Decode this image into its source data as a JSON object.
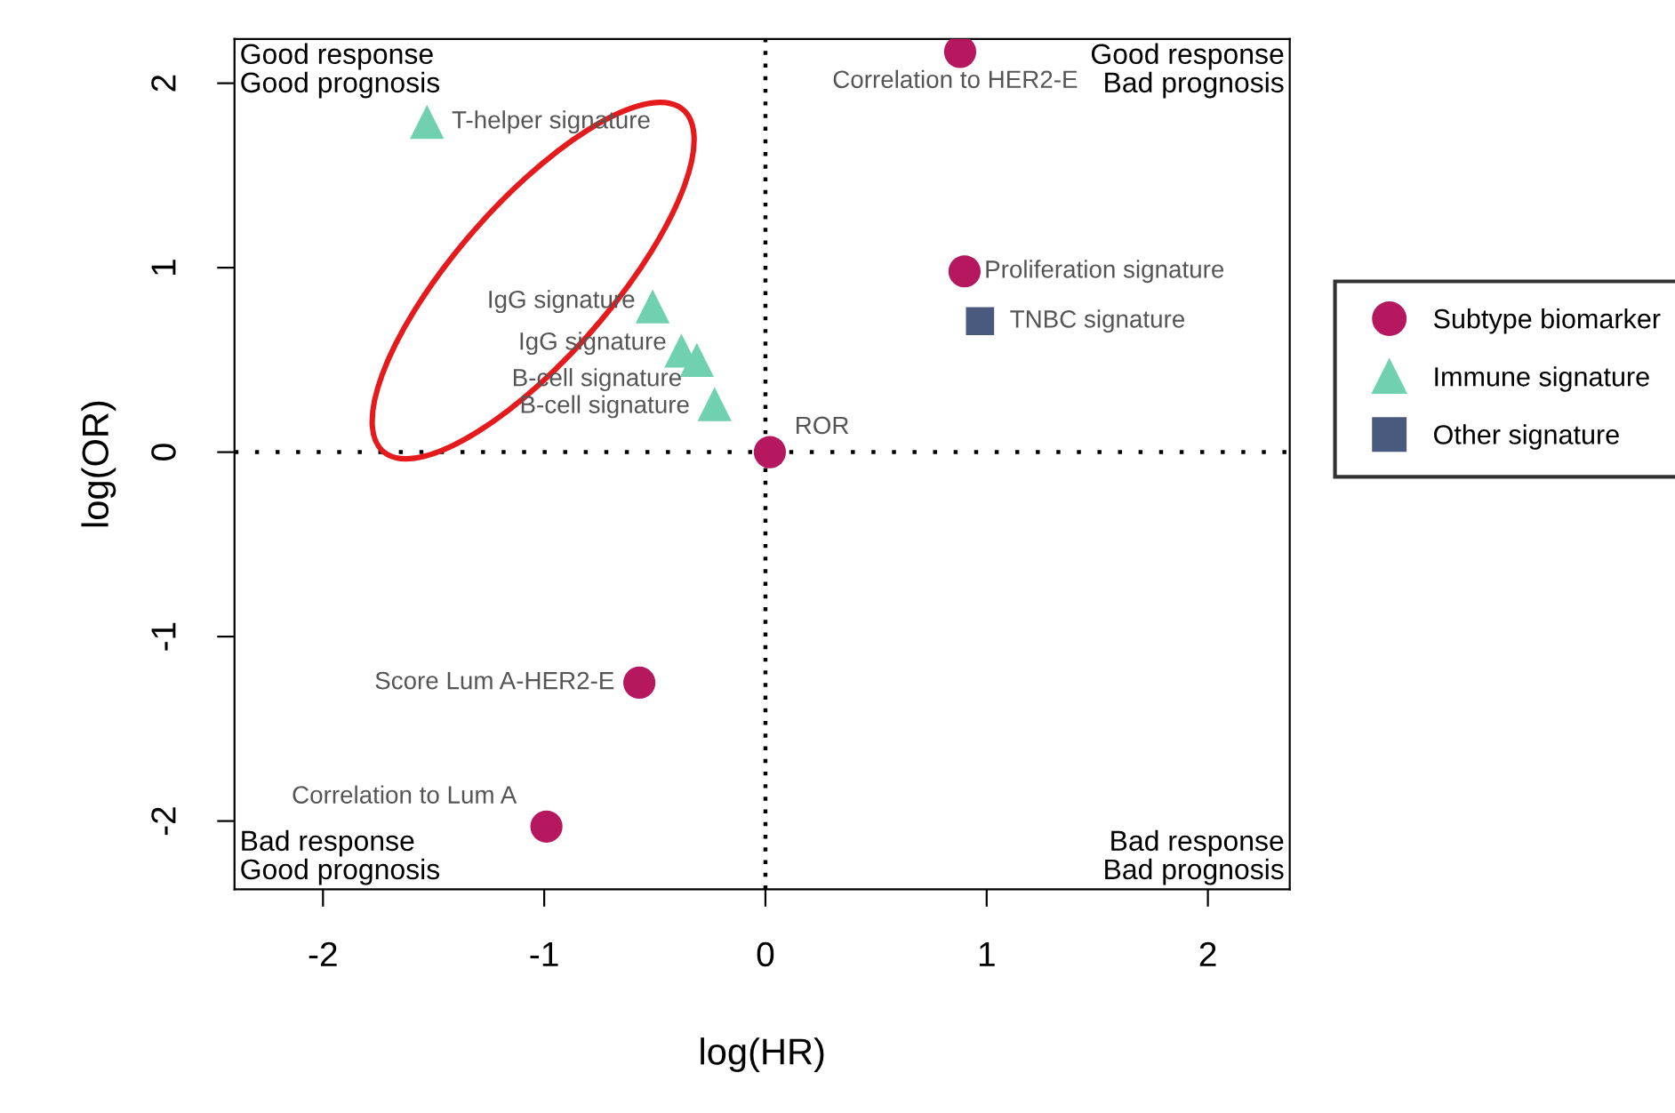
{
  "chart_data": {
    "type": "scatter",
    "xlabel": "log(HR)",
    "ylabel": "log(OR)",
    "xlim": [
      -2.4,
      2.37
    ],
    "ylim": [
      -2.37,
      2.24
    ],
    "xticks": [
      -2,
      -1,
      0,
      1,
      2
    ],
    "yticks": [
      -2,
      -1,
      0,
      1,
      2
    ],
    "grid": false,
    "legend": "right",
    "series": [
      {
        "name": "Subtype biomarker",
        "color": "#b5185f",
        "marker": "circle",
        "x": [
          0.88,
          0.9,
          0.02,
          -0.57,
          -0.99
        ],
        "values": [
          2.17,
          0.98,
          0.0,
          -1.25,
          -2.03
        ]
      },
      {
        "name": "Immune signature",
        "color": "#6fd1b0",
        "marker": "triangle",
        "x": [
          -1.53,
          -0.51,
          -0.38,
          -0.31,
          -0.23
        ],
        "values": [
          1.79,
          0.79,
          0.55,
          0.5,
          0.26
        ]
      },
      {
        "name": "Other signature",
        "color": "#4a5a7e",
        "marker": "square",
        "x": [
          0.97
        ],
        "values": [
          0.71
        ]
      }
    ],
    "ref_lines": [
      {
        "axis": "x",
        "value": 0,
        "color": "#000000",
        "line_style": "dotted"
      },
      {
        "axis": "y",
        "value": 0,
        "color": "#000000",
        "line_style": "dotted"
      }
    ],
    "annotations": [
      "Good response\nGood prognosis",
      "Good response\nBad prognosis",
      "Bad response\nGood prognosis",
      "Bad response\nBad prognosis",
      {
        "text": "Correlation to HER2-E",
        "x": 0.88,
        "y": 2.17
      },
      {
        "text": "Proliferation signature",
        "x": 0.9,
        "y": 0.98
      },
      {
        "text": "ROR",
        "x": 0.02,
        "y": 0.0
      },
      {
        "text": "Score Lum A-HER2-E",
        "x": -0.57,
        "y": -1.25
      },
      {
        "text": "Correlation to Lum A",
        "x": -0.99,
        "y": -2.03
      },
      {
        "text": "T-helper signature",
        "x": -1.53,
        "y": 1.79
      },
      {
        "text": "IgG signature",
        "x": -0.51,
        "y": 0.79
      },
      {
        "text": "IgG signature",
        "x": -0.38,
        "y": 0.55
      },
      {
        "text": "B-cell signature",
        "x": -0.31,
        "y": 0.5
      },
      {
        "text": "B-cell signature",
        "x": -0.23,
        "y": 0.26
      },
      {
        "text": "TNBC signature",
        "x": 0.97,
        "y": 0.71
      }
    ]
  }
}
